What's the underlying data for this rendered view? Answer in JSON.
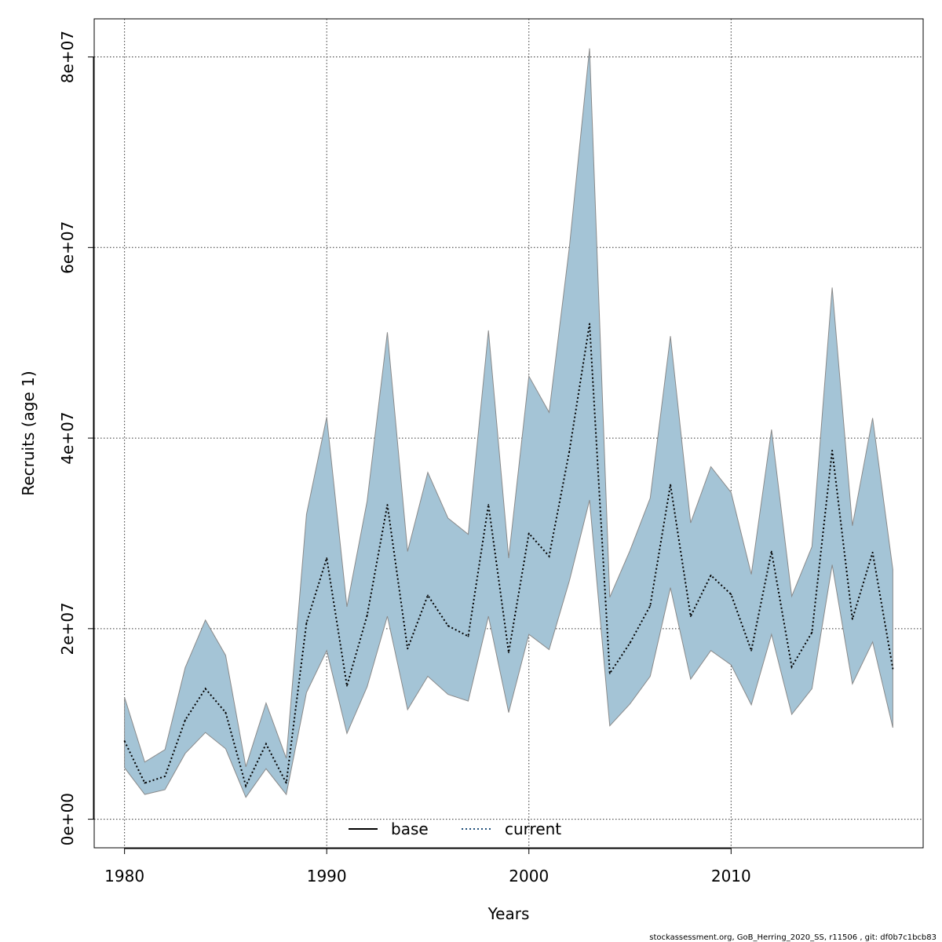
{
  "chart_data": {
    "type": "line",
    "title": "",
    "xlabel": "Years",
    "ylabel": "Recruits (age 1)",
    "xlim": [
      1978.5,
      2019.5
    ],
    "ylim": [
      -3000000,
      84000000
    ],
    "x_ticks": [
      1980,
      1990,
      2000,
      2010
    ],
    "x_tick_labels": [
      "1980",
      "1990",
      "2000",
      "2010"
    ],
    "y_ticks": [
      0,
      20000000,
      40000000,
      60000000,
      80000000
    ],
    "y_tick_labels": [
      "0e+00",
      "2e+07",
      "4e+07",
      "6e+07",
      "8e+07"
    ],
    "grid": true,
    "legend_position": "bottom",
    "x": [
      1980,
      1981,
      1982,
      1983,
      1984,
      1985,
      1986,
      1987,
      1988,
      1989,
      1990,
      1991,
      1992,
      1993,
      1994,
      1995,
      1996,
      1997,
      1998,
      1999,
      2000,
      2001,
      2002,
      2003,
      2004,
      2005,
      2006,
      2007,
      2008,
      2009,
      2010,
      2011,
      2012,
      2013,
      2014,
      2015,
      2016,
      2017,
      2018
    ],
    "series": [
      {
        "name": "current",
        "line_style": "dotted",
        "color": "#000000",
        "values": [
          8200000,
          3800000,
          4500000,
          10400000,
          13700000,
          11200000,
          3500000,
          7900000,
          3800000,
          20600000,
          27400000,
          14000000,
          21400000,
          33000000,
          17900000,
          23500000,
          20300000,
          19200000,
          33000000,
          17500000,
          30000000,
          27600000,
          38600000,
          52000000,
          15300000,
          18500000,
          22400000,
          35100000,
          21300000,
          25600000,
          23600000,
          17700000,
          28100000,
          16000000,
          19600000,
          38700000,
          21000000,
          28000000,
          15800000
        ]
      }
    ],
    "band": {
      "color": "#a4c4d6",
      "lower": [
        5400000,
        2600000,
        3100000,
        6900000,
        9100000,
        7400000,
        2300000,
        5300000,
        2600000,
        13300000,
        17700000,
        9000000,
        13900000,
        21300000,
        11500000,
        15000000,
        13100000,
        12400000,
        21300000,
        11200000,
        19400000,
        17800000,
        25000000,
        33500000,
        9800000,
        12100000,
        15000000,
        24300000,
        14700000,
        17700000,
        16200000,
        12000000,
        19400000,
        11000000,
        13700000,
        26700000,
        14200000,
        18600000,
        9600000
      ],
      "upper": [
        12800000,
        6000000,
        7300000,
        15900000,
        20900000,
        17200000,
        5500000,
        12200000,
        6400000,
        32000000,
        42200000,
        22300000,
        33400000,
        51100000,
        28100000,
        36400000,
        31600000,
        29900000,
        51300000,
        27400000,
        46500000,
        42700000,
        60000000,
        80900000,
        23300000,
        28200000,
        33700000,
        50700000,
        31100000,
        37000000,
        34300000,
        25700000,
        40900000,
        23400000,
        28600000,
        55800000,
        30800000,
        42100000,
        26200000
      ]
    },
    "legend": [
      {
        "label": "base",
        "line_style": "solid",
        "color": "#000000"
      },
      {
        "label": "current",
        "line_style": "dotted",
        "color": "#1f4e79"
      }
    ]
  },
  "footer": "stockassessment.org, GoB_Herring_2020_SS, r11506 , git: df0b7c1bcb83"
}
